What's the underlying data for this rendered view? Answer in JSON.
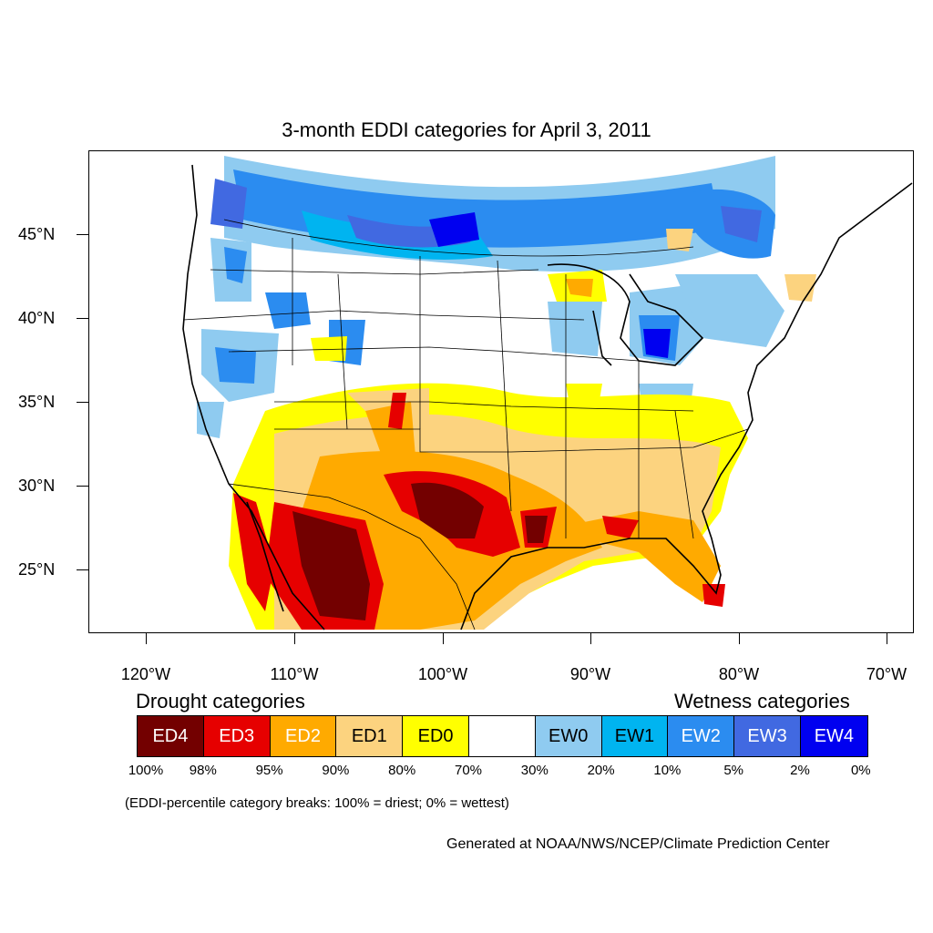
{
  "title": "3-month EDDI categories for April 3, 2011",
  "lat_labels": [
    "45°N",
    "40°N",
    "35°N",
    "30°N",
    "25°N"
  ],
  "lon_labels": [
    "120°W",
    "110°W",
    "100°W",
    "90°W",
    "80°W",
    "70°W"
  ],
  "legend": {
    "drought_heading": "Drought categories",
    "wetness_heading": "Wetness categories",
    "categories": [
      {
        "label": "ED4",
        "color": "#730000",
        "text_color": "#ffffff"
      },
      {
        "label": "ED3",
        "color": "#e60000",
        "text_color": "#ffffff"
      },
      {
        "label": "ED2",
        "color": "#ffaa00",
        "text_color": "#ffffff"
      },
      {
        "label": "ED1",
        "color": "#fcd37f",
        "text_color": "#000000"
      },
      {
        "label": "ED0",
        "color": "#ffff00",
        "text_color": "#000000"
      },
      {
        "label": "",
        "color": "#ffffff",
        "text_color": "#000000"
      },
      {
        "label": "EW0",
        "color": "#8fcbf0",
        "text_color": "#000000"
      },
      {
        "label": "EW1",
        "color": "#00b4f0",
        "text_color": "#000000"
      },
      {
        "label": "EW2",
        "color": "#2b8cf0",
        "text_color": "#ffffff"
      },
      {
        "label": "EW3",
        "color": "#4169e1",
        "text_color": "#ffffff"
      },
      {
        "label": "EW4",
        "color": "#0000f0",
        "text_color": "#ffffff"
      }
    ],
    "percentiles": [
      "100%",
      "98%",
      "95%",
      "90%",
      "80%",
      "70%",
      "30%",
      "20%",
      "10%",
      "5%",
      "2%",
      "0%"
    ]
  },
  "note": "(EDDI-percentile category breaks: 100% = driest; 0% = wettest)",
  "credit": "Generated at NOAA/NWS/NCEP/Climate Prediction Center"
}
